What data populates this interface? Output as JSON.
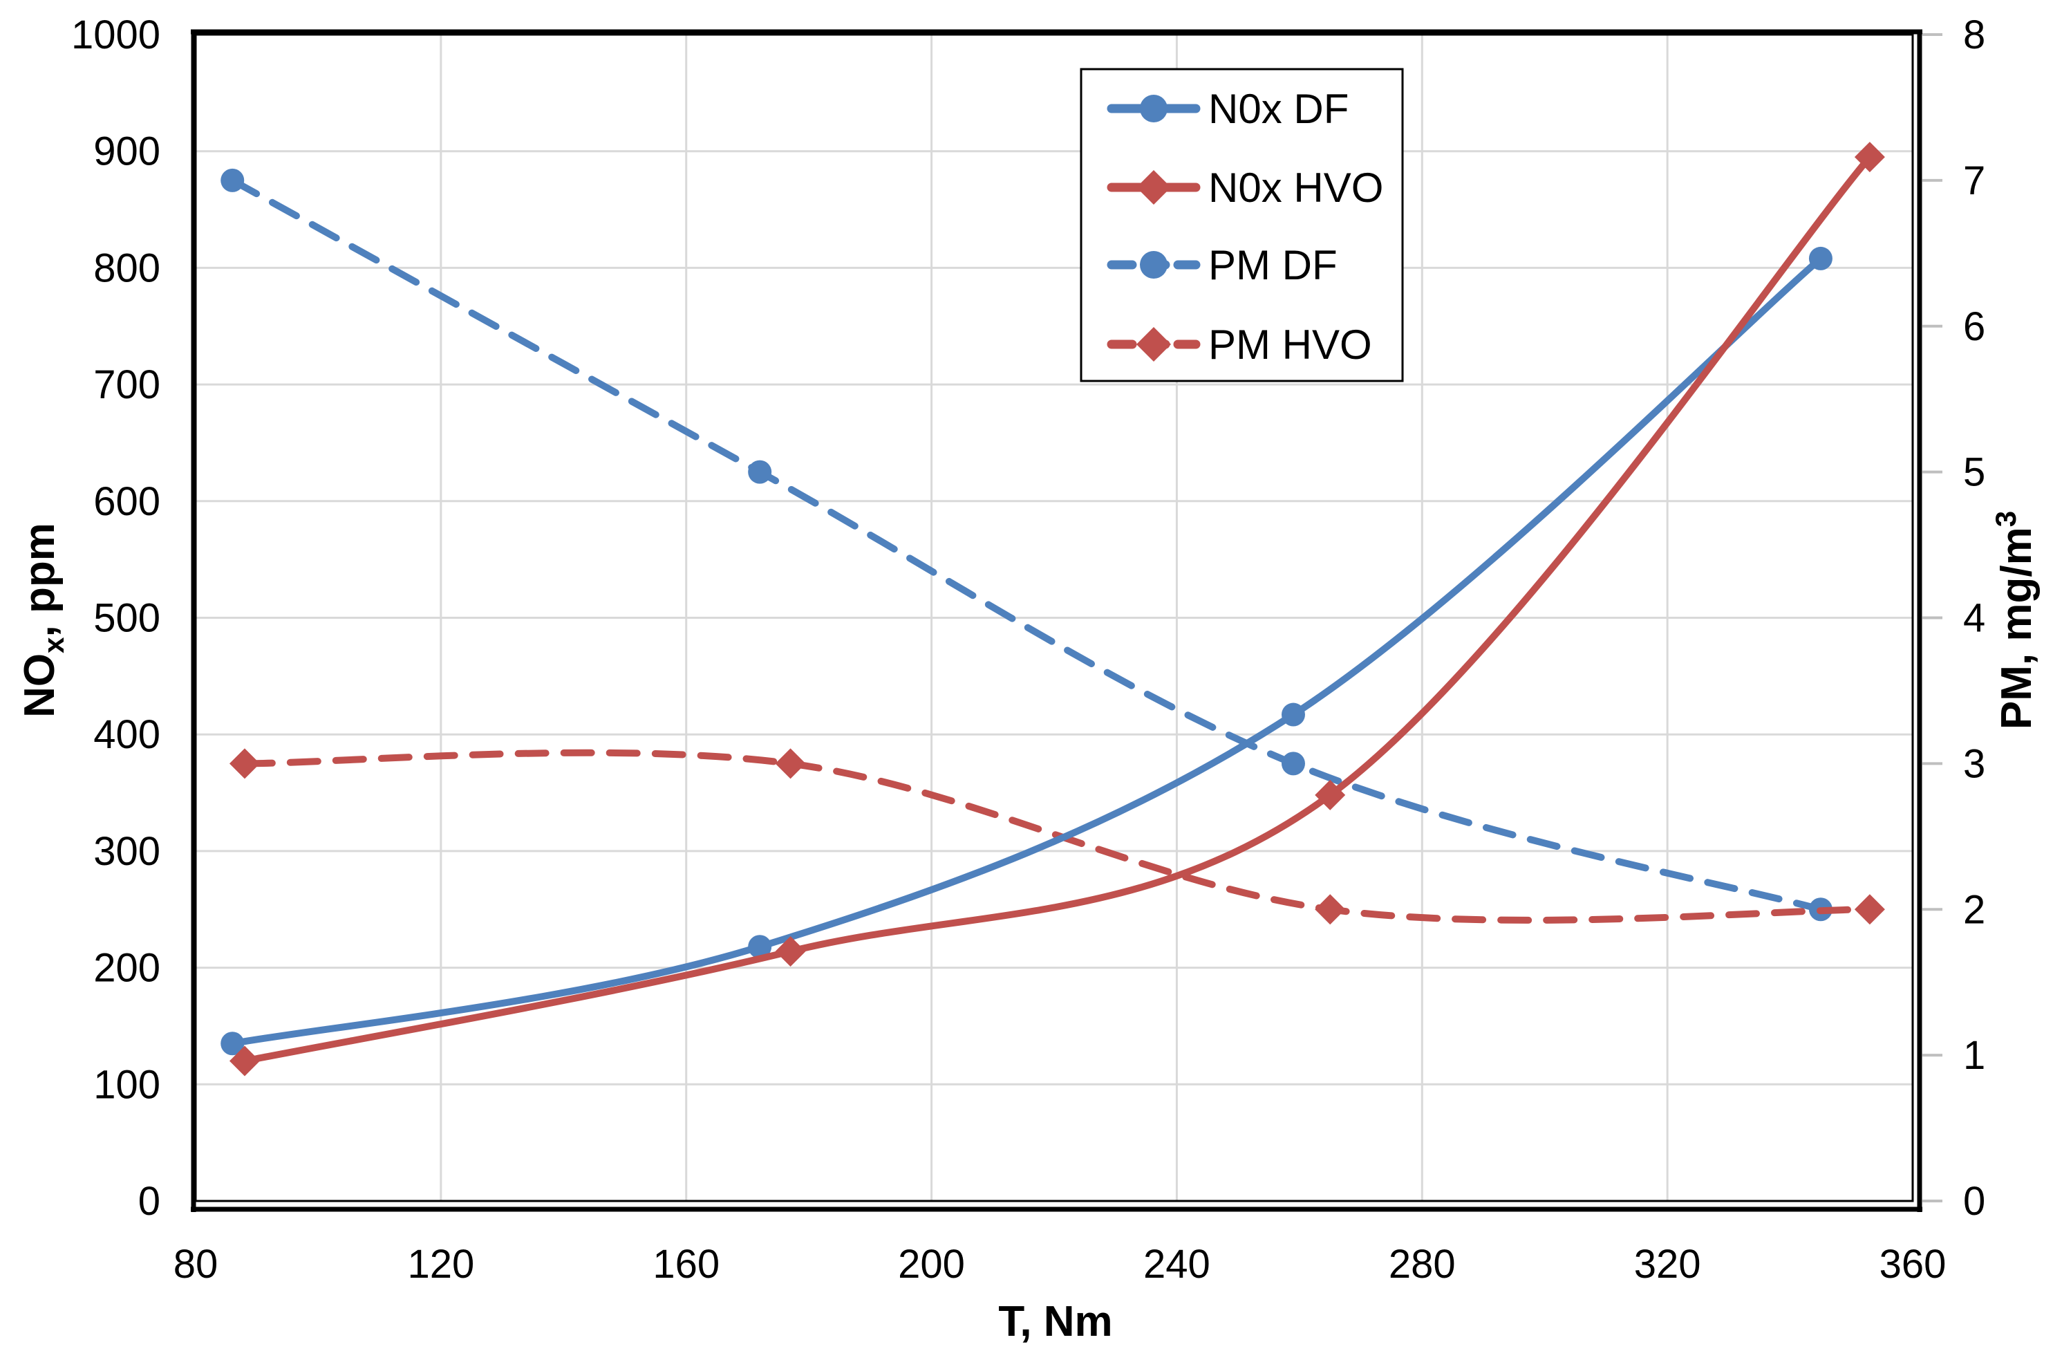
{
  "chart_data": {
    "type": "line",
    "title": "",
    "xlabel": "T, Nm",
    "x_axis": {
      "min": 80,
      "max": 360,
      "tick_step": 40,
      "tick_labels": [
        "80",
        "120",
        "160",
        "200",
        "240",
        "280",
        "320",
        "360"
      ]
    },
    "y_left": {
      "label_main": "NO",
      "label_sub": "x",
      "label_rest": ", ppm",
      "min": 0,
      "max": 1000,
      "tick_step": 100,
      "tick_labels": [
        "0",
        "100",
        "200",
        "300",
        "400",
        "500",
        "600",
        "700",
        "800",
        "900",
        "1000"
      ]
    },
    "y_right": {
      "label_main": "PM, mg/m",
      "label_sup": "3",
      "min": 0,
      "max": 8,
      "tick_step": 1,
      "tick_labels": [
        "0",
        "1",
        "2",
        "3",
        "4",
        "5",
        "6",
        "7",
        "8"
      ]
    },
    "grid": true,
    "legend_position": "top-center",
    "series": [
      {
        "name": "PM DF",
        "axis": "right",
        "color": "#4F81BD",
        "line": "dashed",
        "marker": "circle",
        "x": [
          86,
          172,
          259,
          345
        ],
        "y": [
          7.0,
          5.0,
          3.0,
          2.0
        ]
      },
      {
        "name": "PM HVO",
        "axis": "right",
        "color": "#C0504D",
        "line": "dashed",
        "marker": "diamond",
        "x": [
          88,
          177,
          265,
          353
        ],
        "y": [
          3.0,
          3.0,
          2.0,
          2.0
        ]
      },
      {
        "name": "N0x DF",
        "axis": "left",
        "color": "#4F81BD",
        "line": "solid",
        "marker": "circle",
        "x": [
          86,
          172,
          259,
          345
        ],
        "y": [
          135,
          218,
          417,
          808
        ]
      },
      {
        "name": "N0x HVO",
        "axis": "left",
        "color": "#C0504D",
        "line": "solid",
        "marker": "diamond",
        "x": [
          88,
          177,
          265,
          353
        ],
        "y": [
          120,
          214,
          348,
          895
        ]
      }
    ],
    "legend_order": [
      2,
      3,
      0,
      1
    ]
  },
  "colors": {
    "blue": "#4F81BD",
    "red": "#C0504D",
    "gridline": "#D9D9D9",
    "right_tick": "#BFBFBF",
    "border": "#000000",
    "background": "#FFFFFF"
  }
}
